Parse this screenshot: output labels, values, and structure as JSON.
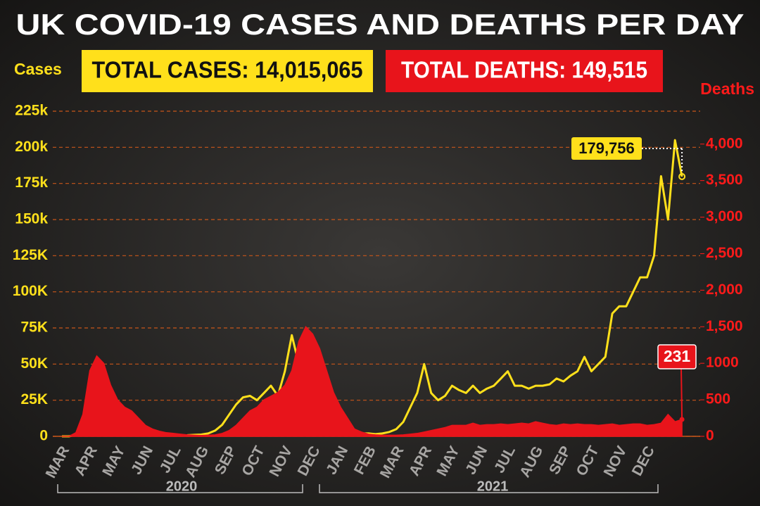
{
  "chart_data": {
    "type": "line",
    "title": "UK COVID-19 CASES AND DEATHS PER DAY",
    "annotations": [
      "TOTAL CASES: 14,015,065",
      "TOTAL DEATHS: 149,515",
      "2020",
      "2021"
    ],
    "categories": [
      "MAR",
      null,
      null,
      null,
      "APR",
      null,
      null,
      null,
      "MAY",
      null,
      null,
      null,
      "JUN",
      null,
      null,
      null,
      "JUL",
      null,
      null,
      null,
      "AUG",
      null,
      null,
      null,
      "SEP",
      null,
      null,
      null,
      "OCT",
      null,
      null,
      null,
      "NOV",
      null,
      null,
      null,
      "DEC",
      null,
      null,
      null,
      "JAN",
      null,
      null,
      null,
      "FEB",
      null,
      null,
      null,
      "MAR",
      null,
      null,
      null,
      "APR",
      null,
      null,
      null,
      "MAY",
      null,
      null,
      null,
      "JUN",
      null,
      null,
      null,
      "JUL",
      null,
      null,
      null,
      "AUG",
      null,
      null,
      null,
      "SEP",
      null,
      null,
      null,
      "OCT",
      null,
      null,
      null,
      "NOV",
      null,
      null,
      null,
      "DEC",
      null,
      null,
      null,
      null,
      null
    ],
    "series": [
      {
        "name": "Cases",
        "color": "#ffe01b",
        "values": [
          0,
          0,
          1000,
          3000,
          5000,
          7000,
          6000,
          5000,
          4000,
          3000,
          2000,
          1500,
          1000,
          800,
          700,
          600,
          600,
          700,
          800,
          1000,
          1200,
          2000,
          4000,
          8000,
          15000,
          22000,
          27000,
          28000,
          25000,
          30000,
          35000,
          28000,
          45000,
          70000,
          50000,
          35000,
          30000,
          45000,
          40000,
          25000,
          10000,
          5000,
          3000,
          2000,
          2000,
          1500,
          2000,
          3000,
          5000,
          10000,
          20000,
          30000,
          50000,
          30000,
          25000,
          28000,
          35000,
          32000,
          30000,
          35000,
          30000,
          33000,
          35000,
          40000,
          45000,
          35000,
          35000,
          33000,
          35000,
          35000,
          36000,
          40000,
          38000,
          42000,
          45000,
          55000,
          45000,
          50000,
          55000,
          85000,
          90000,
          90000,
          100000,
          110000,
          110000,
          125000,
          180000,
          150000,
          205000,
          179756
        ],
        "value_labels": {
          "89": "179,756"
        }
      },
      {
        "name": "Deaths",
        "color": "#e8141b",
        "axis": "y2",
        "values": [
          0,
          0,
          50,
          300,
          900,
          1100,
          1000,
          700,
          500,
          400,
          350,
          250,
          150,
          100,
          70,
          50,
          40,
          30,
          20,
          15,
          12,
          15,
          20,
          40,
          80,
          150,
          250,
          350,
          400,
          500,
          550,
          600,
          700,
          900,
          1300,
          1500,
          1400,
          1200,
          900,
          600,
          400,
          250,
          100,
          60,
          30,
          20,
          15,
          15,
          15,
          20,
          30,
          40,
          60,
          80,
          100,
          120,
          150,
          150,
          150,
          180,
          150,
          160,
          160,
          170,
          160,
          170,
          180,
          170,
          200,
          180,
          160,
          150,
          170,
          160,
          170,
          160,
          160,
          150,
          160,
          170,
          150,
          160,
          170,
          170,
          150,
          160,
          180,
          300,
          200,
          231
        ]
      }
    ],
    "ylim": [
      0,
      225000
    ],
    "yticks": [
      0,
      {
        "value": 25000,
        "label": "25K"
      },
      {
        "value": 50000,
        "label": "50K"
      },
      {
        "value": 75000,
        "label": "75K"
      },
      {
        "value": 100000,
        "label": "100K"
      },
      {
        "value": 125000,
        "label": "125K"
      },
      {
        "value": 150000,
        "label": "150k"
      },
      {
        "value": 175000,
        "label": "175k"
      },
      {
        "value": 200000,
        "label": "200k"
      },
      {
        "value": 225000,
        "label": "225k"
      }
    ],
    "y2lim": [
      0,
      4450
    ],
    "y2ticks": [
      0,
      500,
      1000,
      {
        "value": 1500,
        "label": "1,500"
      },
      {
        "value": 2000,
        "label": "2,000"
      },
      {
        "value": 2500,
        "label": "2,500"
      },
      {
        "value": 3000,
        "label": "3,000"
      },
      {
        "value": 3500,
        "label": "3,500"
      },
      {
        "value": 4000,
        "label": "4,000"
      }
    ],
    "grid": true
  }
}
